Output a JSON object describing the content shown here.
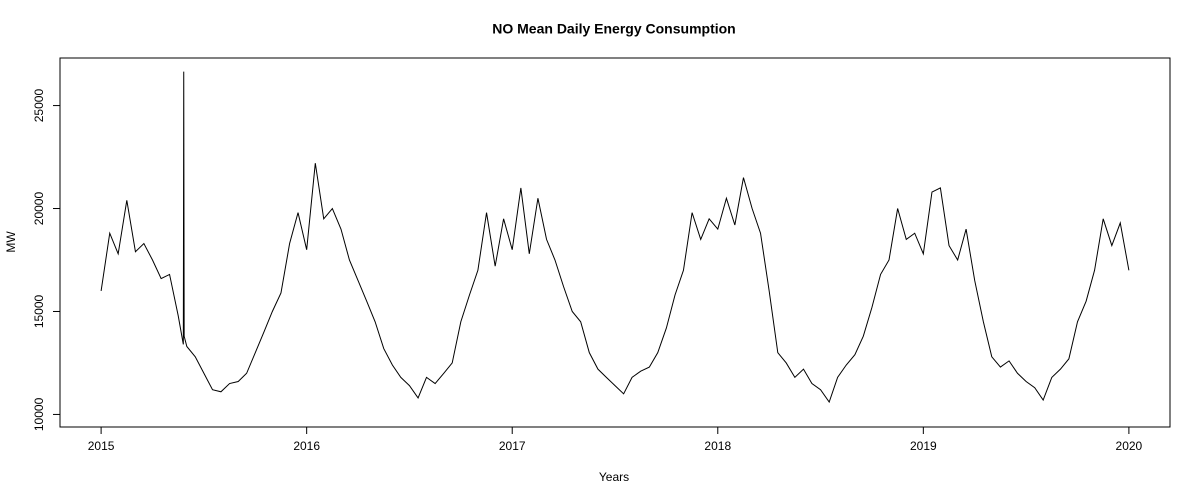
{
  "chart_data": {
    "type": "line",
    "title": "NO Mean Daily Energy Consumption",
    "x_label": "Years",
    "y_label": "MW",
    "color": "#000000",
    "xlim": [
      2014.8,
      2020.2
    ],
    "ylim": [
      9390,
      27310
    ],
    "xticks": [
      2015,
      2016,
      2017,
      2018,
      2019,
      2020
    ],
    "yticks": [
      10000,
      15000,
      20000,
      25000
    ],
    "x": [
      2015.0,
      2015.042,
      2015.083,
      2015.125,
      2015.167,
      2015.208,
      2015.25,
      2015.292,
      2015.333,
      2015.375,
      2015.4,
      2015.402,
      2015.404,
      2015.417,
      2015.458,
      2015.5,
      2015.542,
      2015.583,
      2015.625,
      2015.667,
      2015.708,
      2015.75,
      2015.792,
      2015.833,
      2015.875,
      2015.917,
      2015.958,
      2016.0,
      2016.042,
      2016.083,
      2016.125,
      2016.167,
      2016.208,
      2016.25,
      2016.292,
      2016.333,
      2016.375,
      2016.417,
      2016.458,
      2016.5,
      2016.542,
      2016.583,
      2016.625,
      2016.667,
      2016.708,
      2016.75,
      2016.792,
      2016.833,
      2016.875,
      2016.917,
      2016.958,
      2017.0,
      2017.042,
      2017.083,
      2017.125,
      2017.167,
      2017.208,
      2017.25,
      2017.292,
      2017.333,
      2017.375,
      2017.417,
      2017.458,
      2017.5,
      2017.542,
      2017.583,
      2017.625,
      2017.667,
      2017.708,
      2017.75,
      2017.792,
      2017.833,
      2017.875,
      2017.917,
      2017.958,
      2018.0,
      2018.042,
      2018.083,
      2018.125,
      2018.167,
      2018.208,
      2018.25,
      2018.292,
      2018.333,
      2018.375,
      2018.417,
      2018.458,
      2018.5,
      2018.542,
      2018.583,
      2018.625,
      2018.667,
      2018.708,
      2018.75,
      2018.792,
      2018.833,
      2018.875,
      2018.917,
      2018.958,
      2019.0,
      2019.042,
      2019.083,
      2019.125,
      2019.167,
      2019.208,
      2019.25,
      2019.292,
      2019.333,
      2019.375,
      2019.417,
      2019.458,
      2019.5,
      2019.542,
      2019.583,
      2019.625,
      2019.667,
      2019.708,
      2019.75,
      2019.792,
      2019.833,
      2019.875,
      2019.917,
      2019.958,
      2020.0
    ],
    "values": [
      16000,
      18800,
      17800,
      20400,
      17900,
      18300,
      17500,
      16600,
      16800,
      14800,
      13400,
      26650,
      13800,
      13300,
      12800,
      12000,
      11200,
      11100,
      11500,
      11600,
      12000,
      13000,
      14000,
      15000,
      15900,
      18300,
      19800,
      18000,
      22200,
      19500,
      20000,
      19000,
      17500,
      16500,
      15500,
      14500,
      13200,
      12400,
      11800,
      11400,
      10800,
      11800,
      11500,
      12000,
      12500,
      14500,
      15800,
      17000,
      19800,
      17200,
      19500,
      18000,
      21000,
      17800,
      20500,
      18500,
      17500,
      16200,
      15000,
      14500,
      13000,
      12200,
      11800,
      11400,
      11000,
      11800,
      12100,
      12300,
      13000,
      14200,
      15800,
      17000,
      19800,
      18500,
      19500,
      19000,
      20500,
      19200,
      21500,
      20000,
      18800,
      16000,
      13000,
      12500,
      11800,
      12200,
      11500,
      11200,
      10600,
      11800,
      12400,
      12900,
      13800,
      15200,
      16800,
      17500,
      20000,
      18500,
      18800,
      17800,
      20800,
      21000,
      18200,
      17500,
      19000,
      16500,
      14500,
      12800,
      12300,
      12600,
      12000,
      11600,
      11300,
      10700,
      11800,
      12200,
      12700,
      14500,
      15500,
      17000,
      19500,
      18200,
      19300,
      17000
    ]
  }
}
